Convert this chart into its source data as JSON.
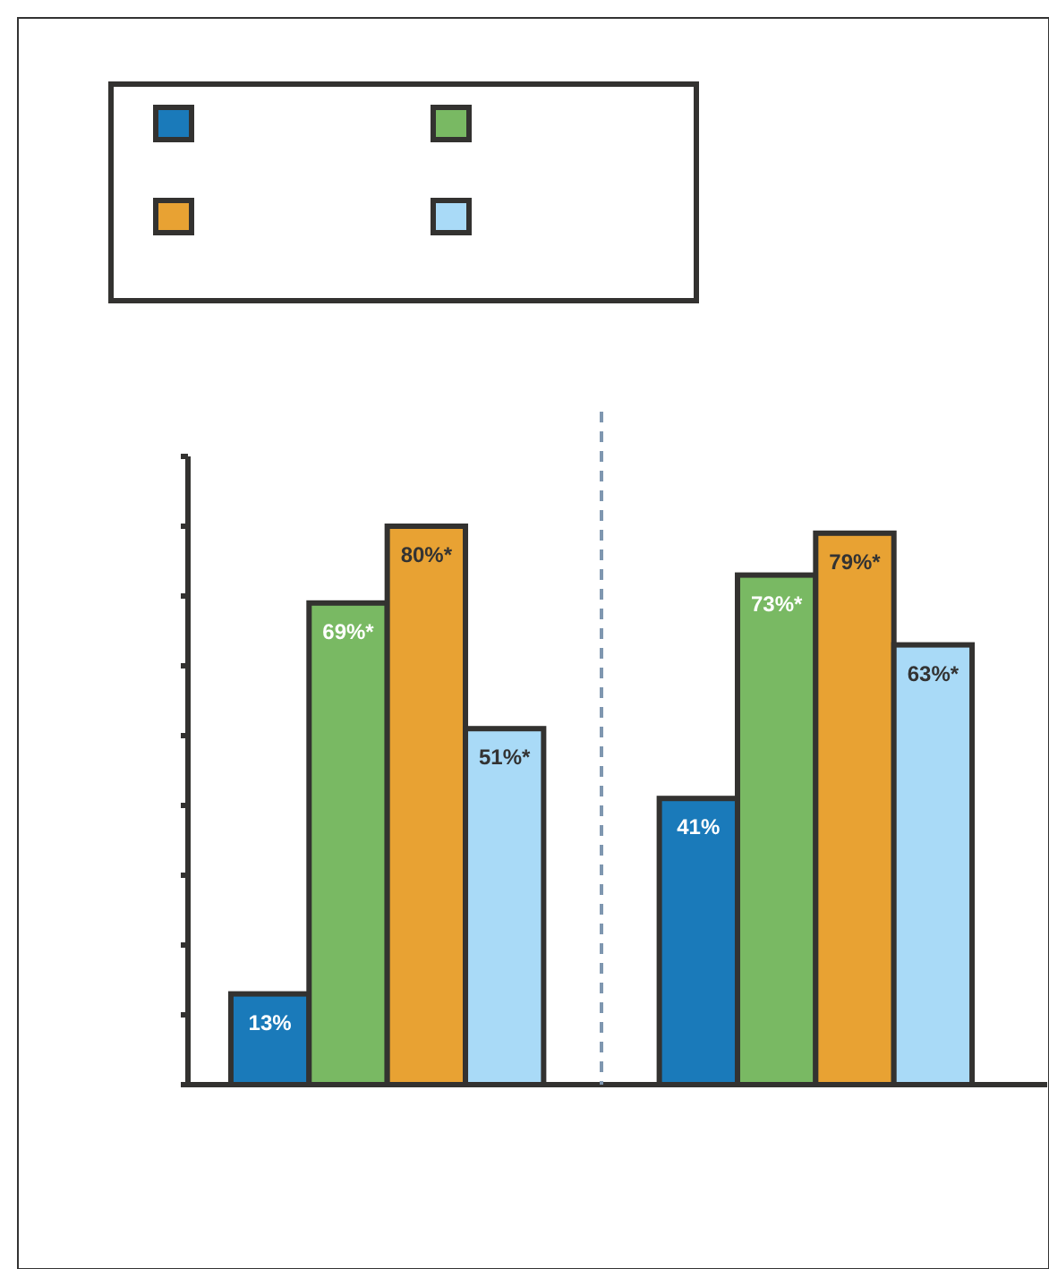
{
  "chart_data": {
    "type": "bar",
    "categories": [
      null,
      null
    ],
    "series": [
      {
        "color": "#1a7aba",
        "values": [
          13,
          41
        ],
        "value_labels": [
          "13%",
          "41%"
        ]
      },
      {
        "color": "#79b963",
        "values": [
          69,
          73
        ],
        "value_labels": [
          "69%*",
          "73%*"
        ]
      },
      {
        "color": "#e8a233",
        "values": [
          80,
          79
        ],
        "value_labels": [
          "80%*",
          "79%*"
        ]
      },
      {
        "color": "#a9daf7",
        "values": [
          51,
          63
        ],
        "value_labels": [
          "51%*",
          "63%*"
        ]
      }
    ],
    "ylim": [
      0,
      90
    ],
    "yticks": [
      {
        "value": 0,
        "label": null
      },
      {
        "value": 10,
        "label": null
      },
      {
        "value": 20,
        "label": null
      },
      {
        "value": 30,
        "label": null
      },
      {
        "value": 40,
        "label": null
      },
      {
        "value": 50,
        "label": null
      },
      {
        "value": 60,
        "label": null
      },
      {
        "value": 70,
        "label": null
      },
      {
        "value": 80,
        "label": null
      },
      {
        "value": 90,
        "label": null
      }
    ],
    "grid": false
  }
}
